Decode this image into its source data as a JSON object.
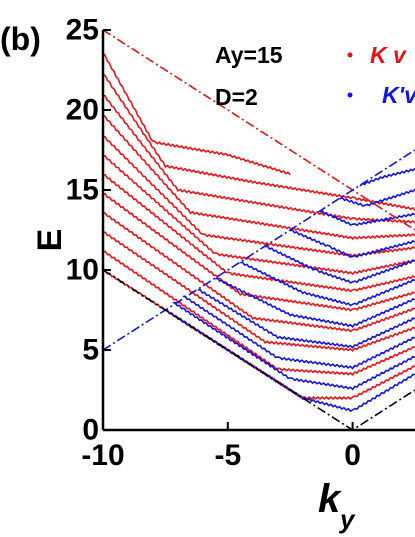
{
  "chart_data": {
    "type": "line",
    "panel_label": "(b)",
    "xlabel": "k",
    "xlabel_sub": "y",
    "ylabel": "E",
    "xlim": [
      -10,
      2.5
    ],
    "ylim": [
      0,
      25
    ],
    "xticks": [
      {
        "value": -10,
        "label": "-10"
      },
      {
        "value": -5,
        "label": "-5"
      },
      {
        "value": 0,
        "label": "0"
      }
    ],
    "yticks": [
      {
        "value": 0,
        "label": "0"
      },
      {
        "value": 5,
        "label": "5"
      },
      {
        "value": 10,
        "label": "10"
      },
      {
        "value": 15,
        "label": "15"
      },
      {
        "value": 20,
        "label": "20"
      },
      {
        "value": 25,
        "label": "25"
      }
    ],
    "annotations": [
      {
        "text": "Ay=15"
      },
      {
        "text": "D=2"
      }
    ],
    "legend": {
      "placement": "top-right",
      "entries": [
        {
          "series": "K",
          "label": "K v",
          "color": "#e8141b"
        },
        {
          "series": "K'",
          "label": "K'v",
          "color": "#1414e0"
        }
      ]
    },
    "colors": {
      "K": "#e8141b",
      "K_prime": "#1414e0",
      "boundary": "#000000"
    },
    "series": [
      {
        "id": "K",
        "color": "#e8141b",
        "curves": [
          {
            "points": [
              [
                -10,
                10.0
              ],
              [
                -2,
                2.0
              ],
              [
                0,
                2.0
              ],
              [
                2.5,
                4.0
              ]
            ]
          },
          {
            "points": [
              [
                -10,
                11.2
              ],
              [
                -3,
                3.8
              ],
              [
                0,
                3.5
              ],
              [
                2.5,
                5.2
              ]
            ]
          },
          {
            "points": [
              [
                -10,
                12.4
              ],
              [
                -3.5,
                5.5
              ],
              [
                0,
                5.0
              ],
              [
                2.5,
                6.4
              ]
            ]
          },
          {
            "points": [
              [
                -10,
                13.6
              ],
              [
                -4,
                7.0
              ],
              [
                0,
                6.2
              ],
              [
                2.5,
                7.6
              ]
            ]
          },
          {
            "points": [
              [
                -10,
                14.8
              ],
              [
                -4.5,
                8.5
              ],
              [
                0,
                7.5
              ],
              [
                2.5,
                8.6
              ]
            ]
          },
          {
            "points": [
              [
                -10,
                16.0
              ],
              [
                -5,
                9.8
              ],
              [
                0,
                8.7
              ],
              [
                2.5,
                9.6
              ]
            ]
          },
          {
            "points": [
              [
                -10,
                17.2
              ],
              [
                -5.5,
                11.0
              ],
              [
                0,
                9.8
              ],
              [
                2.5,
                10.6
              ]
            ]
          },
          {
            "points": [
              [
                -10,
                18.4
              ],
              [
                -6,
                12.2
              ],
              [
                0,
                10.9
              ],
              [
                2.5,
                11.4
              ]
            ]
          },
          {
            "points": [
              [
                -10,
                19.7
              ],
              [
                -6.5,
                13.6
              ],
              [
                0,
                12.0
              ],
              [
                2.5,
                12.2
              ]
            ]
          },
          {
            "points": [
              [
                -10,
                21.0
              ],
              [
                -7,
                15.0
              ],
              [
                0,
                13.2
              ],
              [
                2.5,
                13.0
              ]
            ]
          },
          {
            "points": [
              [
                -10,
                22.3
              ],
              [
                -7.5,
                16.5
              ],
              [
                -4,
                15.5
              ],
              [
                0,
                14.5
              ],
              [
                2.5,
                13.8
              ]
            ]
          },
          {
            "points": [
              [
                -10,
                23.6
              ],
              [
                -8,
                18.0
              ],
              [
                -5,
                17.2
              ],
              [
                -2.5,
                16.0
              ]
            ]
          }
        ]
      },
      {
        "id": "K_prime",
        "color": "#1414e0",
        "curves": [
          {
            "points": [
              [
                -7.5,
                7.5
              ],
              [
                -2,
                2.0
              ],
              [
                0,
                1.2
              ],
              [
                2.5,
                3.5
              ]
            ]
          },
          {
            "points": [
              [
                -7.2,
                8.0
              ],
              [
                -2.5,
                3.2
              ],
              [
                0,
                2.6
              ],
              [
                2.5,
                4.6
              ]
            ]
          },
          {
            "points": [
              [
                -6.8,
                8.4
              ],
              [
                -3,
                4.5
              ],
              [
                0,
                3.9
              ],
              [
                2.5,
                5.8
              ]
            ]
          },
          {
            "points": [
              [
                -6.2,
                8.8
              ],
              [
                -3,
                5.8
              ],
              [
                0,
                5.2
              ],
              [
                2.5,
                7.0
              ]
            ]
          },
          {
            "points": [
              [
                -5.5,
                9.5
              ],
              [
                -2.5,
                7.2
              ],
              [
                0,
                6.5
              ],
              [
                2.5,
                8.2
              ]
            ]
          },
          {
            "points": [
              [
                -4.5,
                10.5
              ],
              [
                -2,
                8.6
              ],
              [
                0,
                7.8
              ],
              [
                2.5,
                9.4
              ]
            ]
          },
          {
            "points": [
              [
                -3.5,
                11.5
              ],
              [
                -1.5,
                10.0
              ],
              [
                0,
                9.2
              ],
              [
                2.5,
                10.6
              ]
            ]
          },
          {
            "points": [
              [
                -2.5,
                12.5
              ],
              [
                -1,
                11.5
              ],
              [
                0,
                10.8
              ],
              [
                2.5,
                11.8
              ]
            ]
          },
          {
            "points": [
              [
                -1.3,
                13.7
              ],
              [
                0,
                12.8
              ],
              [
                2.5,
                13.5
              ]
            ]
          },
          {
            "points": [
              [
                -0.5,
                14.5
              ],
              [
                0.5,
                14.0
              ],
              [
                2.5,
                15.0
              ]
            ]
          },
          {
            "points": [
              [
                0.3,
                15.3
              ],
              [
                1.2,
                15.8
              ],
              [
                2.5,
                16.3
              ]
            ]
          }
        ]
      }
    ],
    "boundary_lines": [
      {
        "color": "#e8141b",
        "points": [
          [
            -10,
            25.0
          ],
          [
            2.5,
            12.5
          ]
        ]
      },
      {
        "color": "#1414e0",
        "points": [
          [
            -10,
            5.0
          ],
          [
            2.5,
            17.5
          ]
        ]
      },
      {
        "color": "#000000",
        "points": [
          [
            -10,
            10.0
          ],
          [
            0,
            0.0
          ],
          [
            2.5,
            2.5
          ]
        ]
      }
    ]
  }
}
